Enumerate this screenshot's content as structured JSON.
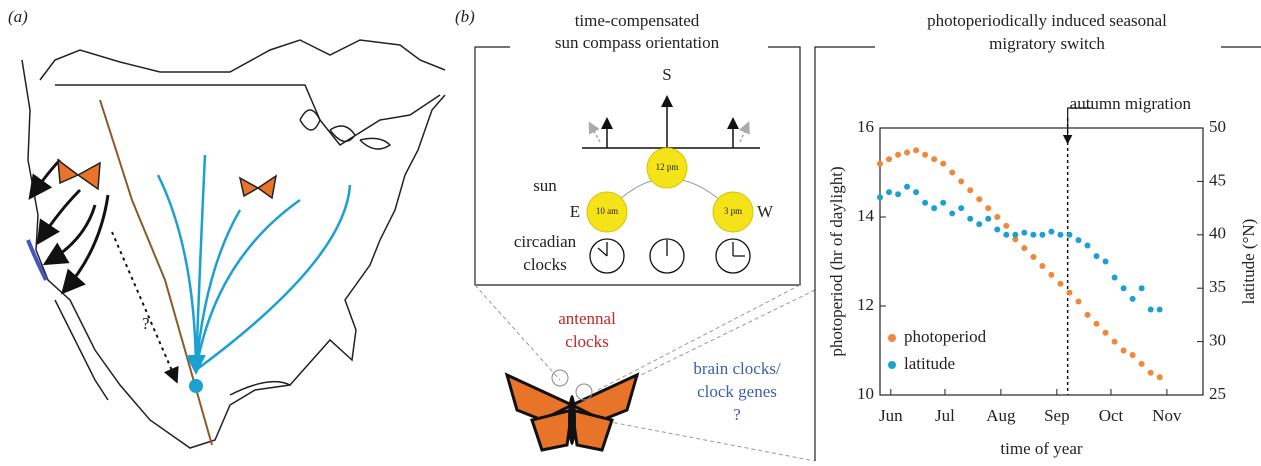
{
  "panels": {
    "a": {
      "label": "(a)",
      "question": "?"
    },
    "b": {
      "label": "(b)"
    }
  },
  "compass": {
    "title": [
      "time-compensated",
      "sun compass orientation"
    ],
    "direction": "S",
    "sun_label": "sun",
    "east": "E",
    "west": "W",
    "suns": [
      "10 am",
      "12 pm",
      "3 pm"
    ],
    "clocks_label": [
      "circadian",
      "clocks"
    ]
  },
  "butterfly": {
    "antennal": [
      "antennal",
      "clocks"
    ],
    "brain": [
      "brain clocks/",
      "clock genes",
      "?"
    ]
  },
  "switch_title": [
    "photoperiodically induced seasonal",
    "migratory switch"
  ],
  "chart_data": {
    "type": "scatter",
    "xlabel": "time of year",
    "ylabel": "photoperiod (hr of daylight)",
    "y2label": "latitude (°N)",
    "x": [
      160,
      165,
      170,
      175,
      180,
      185,
      190,
      195,
      200,
      205,
      210,
      215,
      220,
      225,
      230,
      235,
      240,
      245,
      250,
      255,
      260,
      265,
      270,
      275,
      280,
      285,
      290,
      295,
      300,
      305,
      310,
      315
    ],
    "series": [
      {
        "name": "photoperiod",
        "color": "#f0883a",
        "values": [
          15.2,
          15.3,
          15.4,
          15.45,
          15.5,
          15.4,
          15.3,
          15.2,
          15.0,
          14.8,
          14.6,
          14.4,
          14.2,
          14.0,
          13.8,
          13.5,
          13.3,
          13.1,
          12.9,
          12.7,
          12.5,
          12.3,
          12.1,
          11.8,
          11.6,
          11.4,
          11.2,
          11.0,
          10.9,
          10.7,
          10.5,
          10.4
        ]
      },
      {
        "name": "latitude",
        "color": "#1ba1d1",
        "axis": "y2",
        "values": [
          43.5,
          44,
          43.8,
          44.5,
          44,
          43,
          42.5,
          43,
          42,
          42.5,
          41.5,
          41,
          41.5,
          40.5,
          40,
          40,
          40.2,
          40,
          40,
          40.3,
          40,
          40,
          39.5,
          39,
          38,
          37.5,
          36,
          35,
          34,
          35,
          33,
          33
        ]
      }
    ],
    "xlim": [
      160,
      339
    ],
    "xticks": [
      {
        "value": 166,
        "label": "Jun"
      },
      {
        "value": 196,
        "label": "Jul"
      },
      {
        "value": 227,
        "label": "Aug"
      },
      {
        "value": 258,
        "label": "Sep"
      },
      {
        "value": 288,
        "label": "Oct"
      },
      {
        "value": 319,
        "label": "Nov"
      }
    ],
    "ylim": [
      10,
      16
    ],
    "yticks": [
      10,
      12,
      14,
      16
    ],
    "y2lim": [
      25,
      50
    ],
    "y2ticks": [
      25,
      30,
      35,
      40,
      45,
      50
    ],
    "legend": "lower left",
    "annotation": {
      "text": "autumn migration",
      "x": 264
    }
  }
}
